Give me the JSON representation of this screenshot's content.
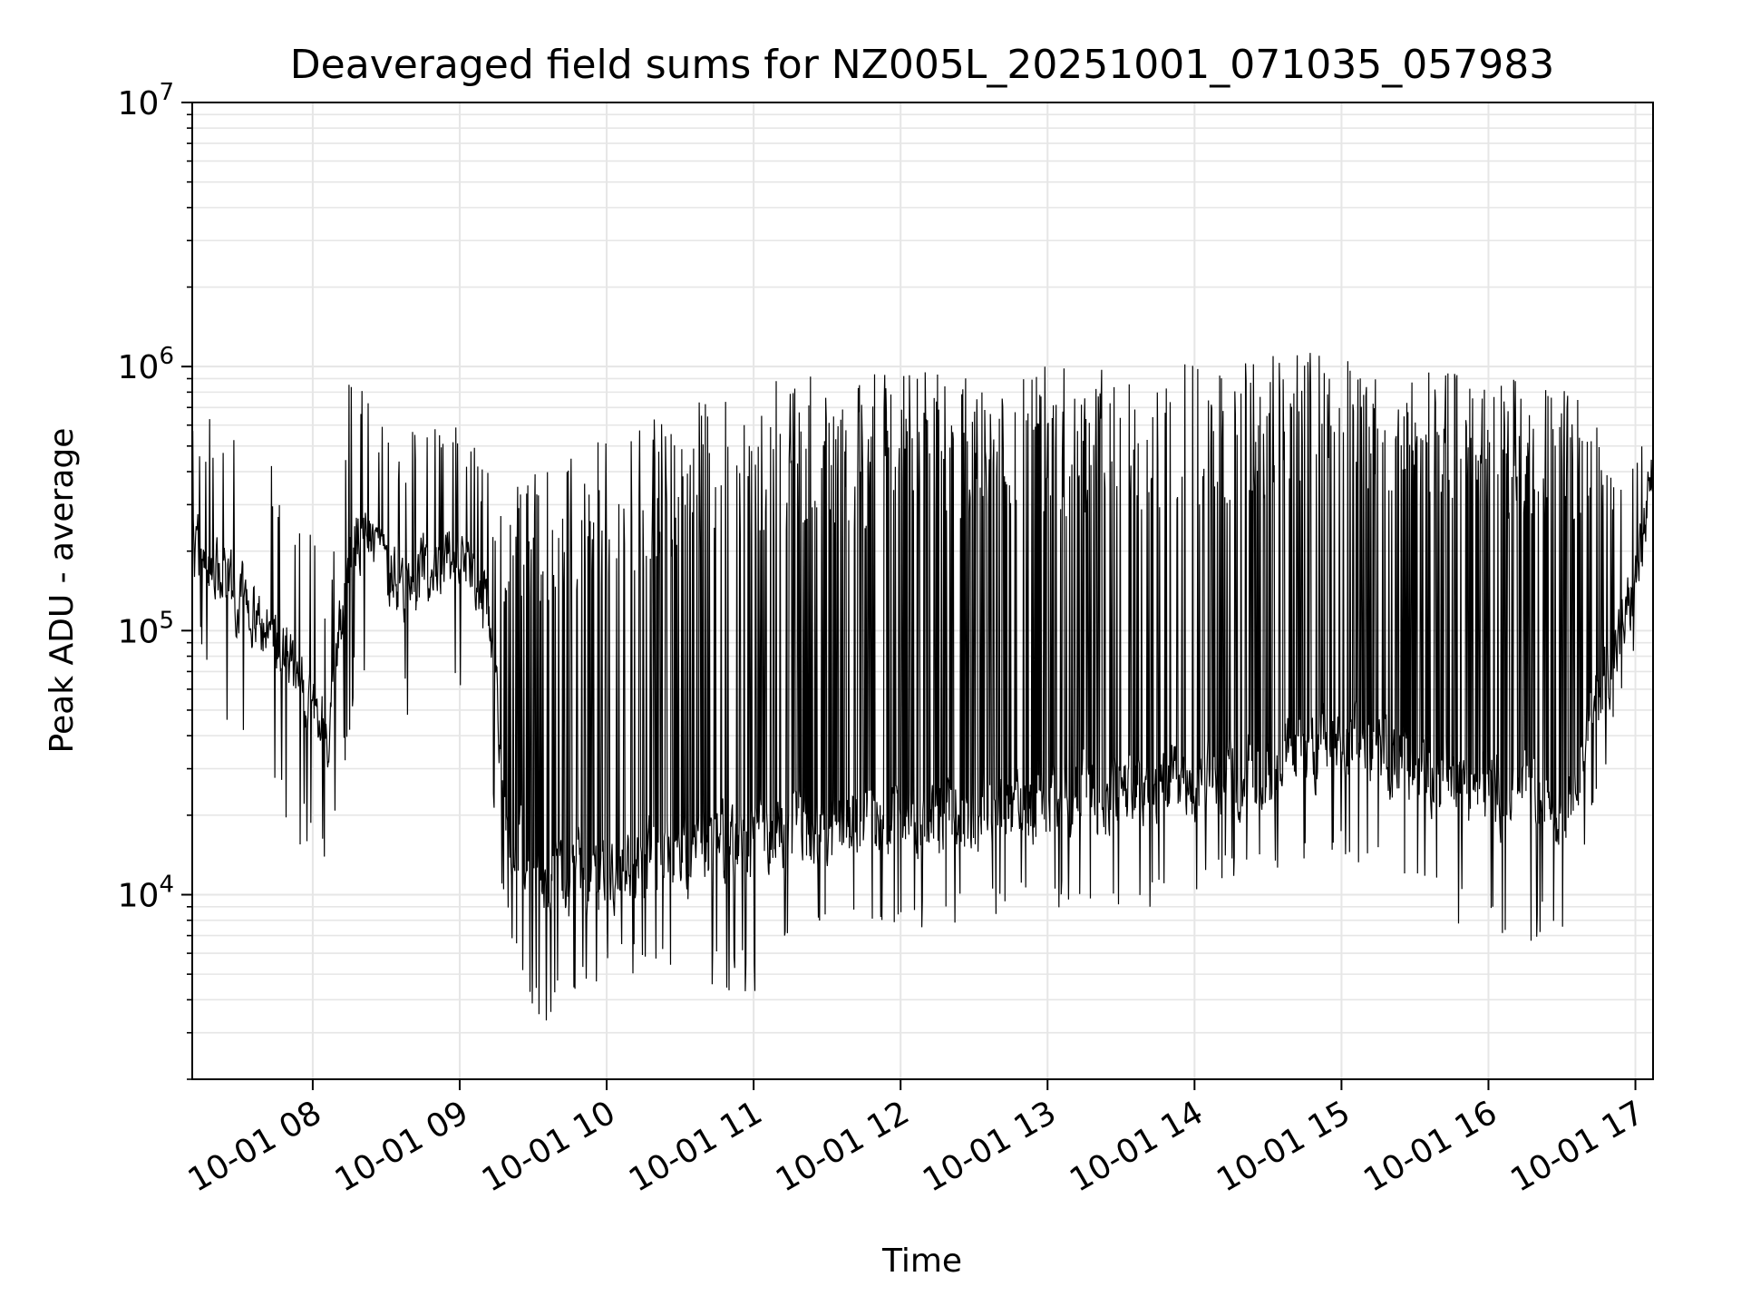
{
  "chart_data": {
    "type": "line",
    "title": "Deaveraged field sums for NZ005L_20251001_071035_057983",
    "xlabel": "Time",
    "ylabel": "Peak ADU - average",
    "yscale": "log",
    "ylim": [
      2000,
      10000000
    ],
    "xlim_hours": [
      7.18,
      17.12
    ],
    "grid": true,
    "line_color": "#000000",
    "grid_color": "#e6e6e6",
    "x_ticks": [
      {
        "hour": 8,
        "label": "10-01 08"
      },
      {
        "hour": 9,
        "label": "10-01 09"
      },
      {
        "hour": 10,
        "label": "10-01 10"
      },
      {
        "hour": 11,
        "label": "10-01 11"
      },
      {
        "hour": 12,
        "label": "10-01 12"
      },
      {
        "hour": 13,
        "label": "10-01 13"
      },
      {
        "hour": 14,
        "label": "10-01 14"
      },
      {
        "hour": 15,
        "label": "10-01 15"
      },
      {
        "hour": 16,
        "label": "10-01 16"
      },
      {
        "hour": 17,
        "label": "10-01 17"
      }
    ],
    "y_ticks": [
      {
        "value": 10000,
        "base": "10",
        "exp": "4"
      },
      {
        "value": 100000,
        "base": "10",
        "exp": "5"
      },
      {
        "value": 1000000,
        "base": "10",
        "exp": "6"
      },
      {
        "value": 10000000,
        "base": "10",
        "exp": "7"
      }
    ],
    "series": [
      {
        "name": "Peak ADU - average",
        "envelope": [
          {
            "t": 7.18,
            "base": 200000,
            "peak": 650000,
            "low": 100000
          },
          {
            "t": 7.6,
            "base": 120000,
            "peak": 600000,
            "low": 20000
          },
          {
            "t": 7.95,
            "base": 60000,
            "peak": 300000,
            "low": 15000
          },
          {
            "t": 8.1,
            "base": 40000,
            "peak": 150000,
            "low": 10500
          },
          {
            "t": 8.27,
            "base": 250000,
            "peak": 1150000,
            "low": 50000
          },
          {
            "t": 8.6,
            "base": 150000,
            "peak": 550000,
            "low": 45000
          },
          {
            "t": 9.0,
            "base": 200000,
            "peak": 650000,
            "low": 60000
          },
          {
            "t": 9.2,
            "base": 120000,
            "peak": 400000,
            "low": 30000
          },
          {
            "t": 9.3,
            "base": 20000,
            "peak": 300000,
            "low": 8000
          },
          {
            "t": 9.5,
            "base": 12000,
            "peak": 450000,
            "low": 3000
          },
          {
            "t": 10.0,
            "base": 12000,
            "peak": 550000,
            "low": 5000
          },
          {
            "t": 10.5,
            "base": 14000,
            "peak": 750000,
            "low": 5000
          },
          {
            "t": 11.0,
            "base": 16000,
            "peak": 900000,
            "low": 4000
          },
          {
            "t": 11.5,
            "base": 18000,
            "peak": 950000,
            "low": 8000
          },
          {
            "t": 12.0,
            "base": 20000,
            "peak": 950000,
            "low": 7000
          },
          {
            "t": 12.5,
            "base": 20000,
            "peak": 1000000,
            "low": 8000
          },
          {
            "t": 13.0,
            "base": 23000,
            "peak": 1000000,
            "low": 9000
          },
          {
            "t": 13.5,
            "base": 25000,
            "peak": 1000000,
            "low": 8000
          },
          {
            "t": 14.0,
            "base": 25000,
            "peak": 1100000,
            "low": 10000
          },
          {
            "t": 14.5,
            "base": 30000,
            "peak": 1100000,
            "low": 12000
          },
          {
            "t": 15.0,
            "base": 40000,
            "peak": 1200000,
            "low": 14000
          },
          {
            "t": 15.5,
            "base": 30000,
            "peak": 1000000,
            "low": 10000
          },
          {
            "t": 16.0,
            "base": 25000,
            "peak": 950000,
            "low": 6500
          },
          {
            "t": 16.5,
            "base": 22000,
            "peak": 900000,
            "low": 6500
          },
          {
            "t": 16.7,
            "base": 50000,
            "peak": 700000,
            "low": 15000
          },
          {
            "t": 16.85,
            "base": 80000,
            "peak": 400000,
            "low": 40000
          },
          {
            "t": 17.0,
            "base": 150000,
            "peak": 450000,
            "low": 75000
          },
          {
            "t": 17.12,
            "base": 400000,
            "peak": 750000,
            "low": 120000
          }
        ]
      }
    ]
  }
}
